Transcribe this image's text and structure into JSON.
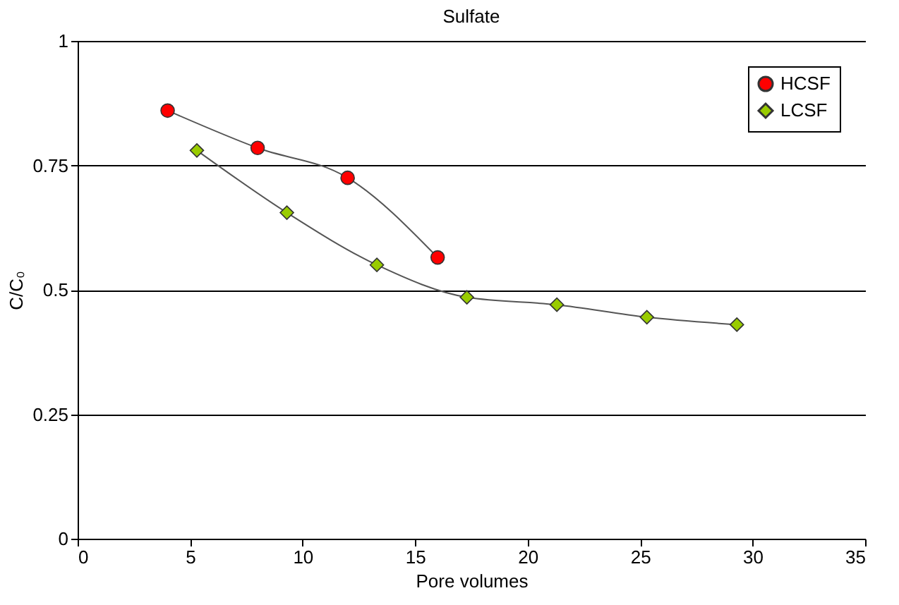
{
  "chart_data": {
    "type": "line",
    "title": "Sulfate",
    "xlabel": "Pore volumes",
    "ylabel": "C/C₀",
    "xlim": [
      0,
      35
    ],
    "xticks": [
      0,
      5,
      10,
      15,
      20,
      25,
      30,
      35
    ],
    "ylim": [
      0,
      1
    ],
    "yticks": [
      0,
      0.25,
      0.5,
      0.75,
      1
    ],
    "grid": "y",
    "legend": "top right",
    "line_style": "solid",
    "series": [
      {
        "name": "HCSF",
        "color": "#ff0000",
        "marker": "circle",
        "x": [
          4,
          8,
          12,
          16
        ],
        "values": [
          0.86,
          0.785,
          0.725,
          0.565
        ]
      },
      {
        "name": "LCSF",
        "color": "#99cc00",
        "marker": "diamond",
        "x": [
          5.3,
          9.3,
          13.3,
          17.3,
          21.3,
          25.3,
          29.3
        ],
        "values": [
          0.78,
          0.655,
          0.55,
          0.485,
          0.47,
          0.445,
          0.43
        ]
      }
    ]
  }
}
